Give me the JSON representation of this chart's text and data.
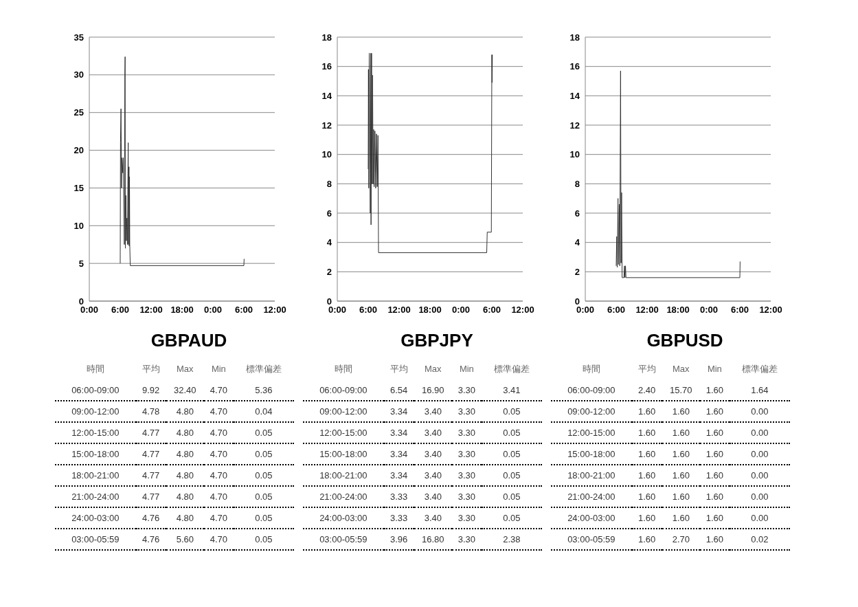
{
  "chart_data": [
    {
      "type": "line",
      "title": "GBPAUD",
      "x": [
        "2000-01-01T06:00",
        "2000-01-01T06:03",
        "2000-01-01T06:09",
        "2000-01-01T06:15",
        "2000-01-01T06:21",
        "2000-01-01T06:30",
        "2000-01-01T06:36",
        "2000-01-01T06:48",
        "2000-01-01T06:54",
        "2000-01-01T06:57",
        "2000-01-01T07:00",
        "2000-01-01T07:06",
        "2000-01-01T07:12",
        "2000-01-01T07:18",
        "2000-01-01T07:24",
        "2000-01-01T07:33",
        "2000-01-01T07:36",
        "2000-01-01T07:42",
        "2000-01-01T07:45",
        "2000-01-01T07:48",
        "2000-01-01T07:51",
        "2000-01-01T07:57",
        "2000-01-02T06:00",
        "2000-01-02T06:03"
      ],
      "series": [
        {
          "color": "#333333",
          "values": [
            5,
            21,
            25.5,
            15,
            19,
            17,
            19,
            7.5,
            30,
            32.4,
            7,
            14,
            8,
            11,
            7.5,
            21,
            7.5,
            17.8,
            7.3,
            16.5,
            7.5,
            4.7,
            4.7,
            5.6
          ]
        }
      ],
      "xlim": [
        "2000-01-01T00:00",
        "2000-01-02T12:00"
      ],
      "xticks": [
        {
          "value": "2000-01-01T00:00",
          "label": "0:00"
        },
        {
          "value": "2000-01-01T06:00",
          "label": "6:00"
        },
        {
          "value": "2000-01-01T12:00",
          "label": "12:00"
        },
        {
          "value": "2000-01-01T18:00",
          "label": "18:00"
        },
        {
          "value": "2000-01-02T00:00",
          "label": "0:00"
        },
        {
          "value": "2000-01-02T06:00",
          "label": "6:00"
        },
        {
          "value": "2000-01-02T12:00",
          "label": "12:00"
        }
      ],
      "ylim": [
        0,
        35
      ],
      "yticks": [
        0,
        5,
        10,
        15,
        20,
        25,
        30,
        35
      ],
      "grid": "y",
      "annotations": [
        "時間",
        "平均",
        "Max",
        "Min",
        "標準偏差",
        "06:00-09:00",
        "9.92",
        "32.40",
        "4.70",
        "5.36",
        "09:00-12:00",
        "4.78",
        "4.80",
        "4.70",
        "0.04",
        "12:00-15:00",
        "4.77",
        "4.80",
        "4.70",
        "0.05",
        "15:00-18:00",
        "4.77",
        "4.80",
        "4.70",
        "0.05",
        "18:00-21:00",
        "4.77",
        "4.80",
        "4.70",
        "0.05",
        "21:00-24:00",
        "4.77",
        "4.80",
        "4.70",
        "0.05",
        "24:00-03:00",
        "4.76",
        "4.80",
        "4.70",
        "0.05",
        "03:00-05:59",
        "4.76",
        "5.60",
        "4.70",
        "0.05"
      ]
    },
    {
      "type": "line",
      "title": "GBPJPY",
      "x": [
        "2000-01-01T06:00",
        "2000-01-01T06:03",
        "2000-01-01T06:06",
        "2000-01-01T06:12",
        "2000-01-01T06:18",
        "2000-01-01T06:24",
        "2000-01-01T06:30",
        "2000-01-01T06:33",
        "2000-01-01T06:39",
        "2000-01-01T06:45",
        "2000-01-01T06:51",
        "2000-01-01T06:57",
        "2000-01-01T07:03",
        "2000-01-01T07:09",
        "2000-01-01T07:18",
        "2000-01-01T07:27",
        "2000-01-01T07:36",
        "2000-01-01T07:45",
        "2000-01-01T07:54",
        "2000-01-01T08:00",
        "2000-01-02T05:00",
        "2000-01-02T05:06",
        "2000-01-02T05:54",
        "2000-01-02T06:00",
        "2000-01-02T06:03",
        "2000-01-02T06:06"
      ],
      "series": [
        {
          "color": "#333333",
          "values": [
            9,
            15.8,
            7.7,
            16.9,
            12,
            6,
            16.9,
            5.2,
            16.9,
            8,
            15.4,
            8,
            11.7,
            7.8,
            11.6,
            7.7,
            11.4,
            7.8,
            11.3,
            3.3,
            3.3,
            4.7,
            4.7,
            16.8,
            14.9,
            16.8
          ]
        }
      ],
      "xlim": [
        "2000-01-01T00:00",
        "2000-01-02T12:00"
      ],
      "xticks": [
        {
          "value": "2000-01-01T00:00",
          "label": "0:00"
        },
        {
          "value": "2000-01-01T06:00",
          "label": "6:00"
        },
        {
          "value": "2000-01-01T12:00",
          "label": "12:00"
        },
        {
          "value": "2000-01-01T18:00",
          "label": "18:00"
        },
        {
          "value": "2000-01-02T00:00",
          "label": "0:00"
        },
        {
          "value": "2000-01-02T06:00",
          "label": "6:00"
        },
        {
          "value": "2000-01-02T12:00",
          "label": "12:00"
        }
      ],
      "ylim": [
        0,
        18
      ],
      "yticks": [
        0,
        2,
        4,
        6,
        8,
        10,
        12,
        14,
        16,
        18
      ],
      "grid": "y",
      "annotations": [
        "時間",
        "平均",
        "Max",
        "Min",
        "標準偏差",
        "06:00-09:00",
        "6.54",
        "16.90",
        "3.30",
        "3.41",
        "09:00-12:00",
        "3.34",
        "3.40",
        "3.30",
        "0.05",
        "12:00-15:00",
        "3.34",
        "3.40",
        "3.30",
        "0.05",
        "15:00-18:00",
        "3.34",
        "3.40",
        "3.30",
        "0.05",
        "18:00-21:00",
        "3.34",
        "3.40",
        "3.30",
        "0.05",
        "21:00-24:00",
        "3.33",
        "3.40",
        "3.30",
        "0.05",
        "24:00-03:00",
        "3.33",
        "3.40",
        "3.30",
        "0.05",
        "03:00-05:59",
        "3.96",
        "16.80",
        "3.30",
        "2.38"
      ]
    },
    {
      "type": "line",
      "title": "GBPUSD",
      "x": [
        "2000-01-01T06:00",
        "2000-01-01T06:06",
        "2000-01-01T06:12",
        "2000-01-01T06:21",
        "2000-01-01T06:27",
        "2000-01-01T06:36",
        "2000-01-01T06:42",
        "2000-01-01T06:51",
        "2000-01-01T06:57",
        "2000-01-01T07:03",
        "2000-01-01T07:09",
        "2000-01-01T07:30",
        "2000-01-01T07:36",
        "2000-01-01T07:42",
        "2000-01-01T07:48",
        "2000-01-01T07:54",
        "2000-01-02T06:00",
        "2000-01-02T06:03"
      ],
      "series": [
        {
          "color": "#333333",
          "values": [
            2.4,
            4.4,
            2.3,
            7.0,
            2.5,
            6.6,
            2.4,
            15.7,
            2.6,
            7.4,
            1.6,
            1.6,
            2.4,
            1.6,
            2.4,
            1.6,
            1.6,
            2.7
          ]
        }
      ],
      "xlim": [
        "2000-01-01T00:00",
        "2000-01-02T12:00"
      ],
      "xticks": [
        {
          "value": "2000-01-01T00:00",
          "label": "0:00"
        },
        {
          "value": "2000-01-01T06:00",
          "label": "6:00"
        },
        {
          "value": "2000-01-01T12:00",
          "label": "12:00"
        },
        {
          "value": "2000-01-01T18:00",
          "label": "18:00"
        },
        {
          "value": "2000-01-02T00:00",
          "label": "0:00"
        },
        {
          "value": "2000-01-02T06:00",
          "label": "6:00"
        },
        {
          "value": "2000-01-02T12:00",
          "label": "12:00"
        }
      ],
      "ylim": [
        0,
        18
      ],
      "yticks": [
        0,
        2,
        4,
        6,
        8,
        10,
        12,
        14,
        16,
        18
      ],
      "grid": "y",
      "annotations": [
        "時間",
        "平均",
        "Max",
        "Min",
        "標準偏差",
        "06:00-09:00",
        "2.40",
        "15.70",
        "1.60",
        "1.64",
        "09:00-12:00",
        "1.60",
        "1.60",
        "1.60",
        "0.00",
        "12:00-15:00",
        "1.60",
        "1.60",
        "1.60",
        "0.00",
        "15:00-18:00",
        "1.60",
        "1.60",
        "1.60",
        "0.00",
        "18:00-21:00",
        "1.60",
        "1.60",
        "1.60",
        "0.00",
        "21:00-24:00",
        "1.60",
        "1.60",
        "1.60",
        "0.00",
        "24:00-03:00",
        "1.60",
        "1.60",
        "1.60",
        "0.00",
        "03:00-05:59",
        "1.60",
        "2.70",
        "1.60",
        "0.02"
      ]
    }
  ]
}
